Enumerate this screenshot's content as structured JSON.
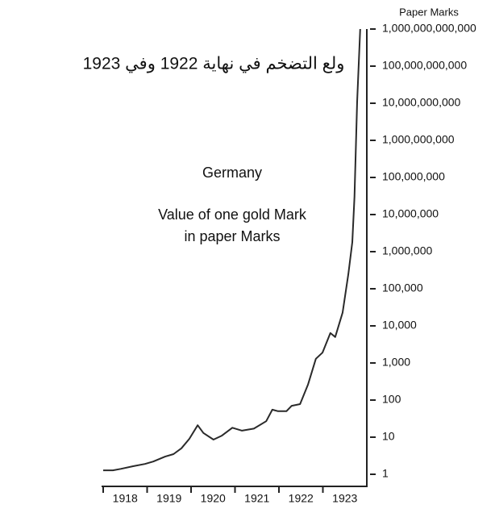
{
  "chart_data": {
    "type": "line",
    "title": "ولع التضخم في نهاية 1922 وفي 1923",
    "annotations": [
      "Germany",
      "Value of one gold Mark",
      "in paper Marks"
    ],
    "y_label": "Paper Marks",
    "log_scale": true,
    "xlim": [
      1918,
      1924
    ],
    "xticks": [
      {
        "value": 1918.5,
        "label": "1918"
      },
      {
        "value": 1919.5,
        "label": "1919"
      },
      {
        "value": 1920.5,
        "label": "1920"
      },
      {
        "value": 1921.5,
        "label": "1921"
      },
      {
        "value": 1922.5,
        "label": "1922"
      },
      {
        "value": 1923.5,
        "label": "1923"
      }
    ],
    "ylim": [
      1,
      1000000000000
    ],
    "yticks": [
      1,
      10,
      100,
      {
        "value": 1000,
        "label": "1,000"
      },
      {
        "value": 10000,
        "label": "10,000"
      },
      {
        "value": 100000,
        "label": "100,000"
      },
      {
        "value": 1000000,
        "label": "1,000,000"
      },
      {
        "value": 10000000,
        "label": "10,000,000"
      },
      {
        "value": 100000000,
        "label": "100,000,000"
      },
      {
        "value": 1000000000,
        "label": "1,000,000,000"
      },
      {
        "value": 10000000000,
        "label": "10,000,000,000"
      },
      {
        "value": 100000000000,
        "label": "100,000,000,000"
      },
      {
        "value": 1000000000000,
        "label": "1,000,000,000,000"
      }
    ],
    "x": [
      1918.0,
      1918.22,
      1918.4,
      1918.68,
      1918.95,
      1919.14,
      1919.41,
      1919.6,
      1919.78,
      1919.96,
      1920.15,
      1920.28,
      1920.51,
      1920.7,
      1920.94,
      1921.16,
      1921.43,
      1921.71,
      1921.85,
      1921.98,
      1922.17,
      1922.29,
      1922.48,
      1922.66,
      1922.84,
      1922.99,
      1923.17,
      1923.28,
      1923.45,
      1923.58,
      1923.67,
      1923.72,
      1923.78,
      1923.85
    ],
    "series": [
      {
        "color": "#2a2a2a",
        "values": [
          1.28,
          1.28,
          1.4,
          1.65,
          1.9,
          2.2,
          3,
          3.5,
          5,
          9,
          21,
          13,
          8.6,
          11,
          18,
          15,
          17,
          27,
          55,
          50,
          50,
          70,
          78,
          260,
          1300,
          1900,
          6400,
          5000,
          23000,
          250000,
          1800000,
          30000000,
          11000000000,
          1000000000000
        ]
      }
    ]
  }
}
